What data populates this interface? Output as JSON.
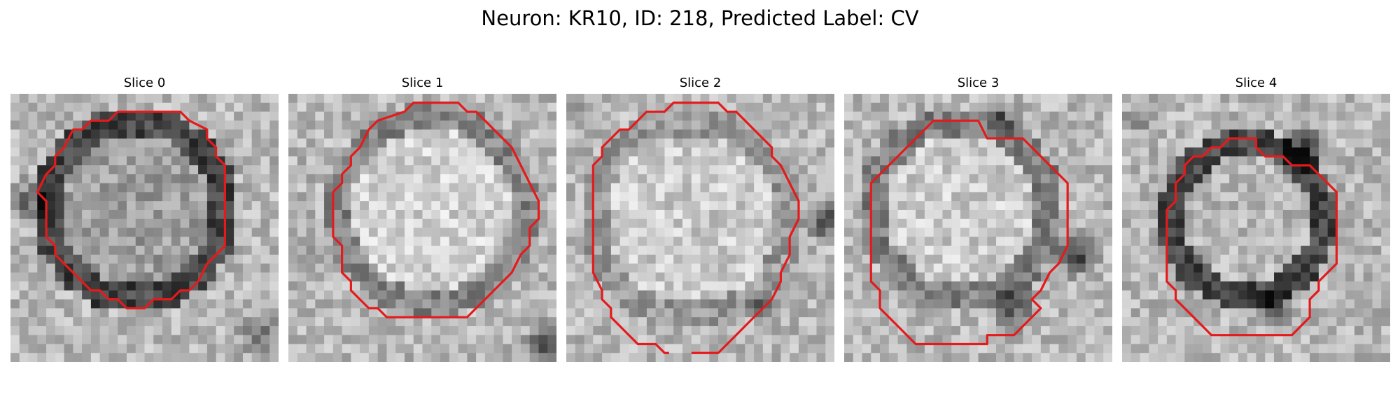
{
  "figure": {
    "title": "Neuron: KR10, ID: 218, Predicted Label: CV"
  },
  "panels": [
    {
      "title": "Slice 0",
      "image": "grayscale-microscopy-slice",
      "contour_color": "#e41a1c"
    },
    {
      "title": "Slice 1",
      "image": "grayscale-microscopy-slice",
      "contour_color": "#e41a1c"
    },
    {
      "title": "Slice 2",
      "image": "grayscale-microscopy-slice",
      "contour_color": "#e41a1c"
    },
    {
      "title": "Slice 3",
      "image": "grayscale-microscopy-slice",
      "contour_color": "#e41a1c"
    },
    {
      "title": "Slice 4",
      "image": "grayscale-microscopy-slice",
      "contour_color": "#e41a1c"
    }
  ]
}
